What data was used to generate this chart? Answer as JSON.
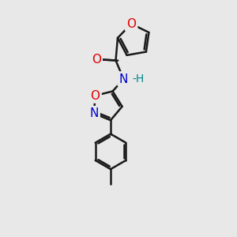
{
  "background_color": "#e8e8e8",
  "bond_color": "#1a1a1a",
  "bond_width": 1.8,
  "atom_colors": {
    "O": "#e00000",
    "N": "#0000cc",
    "H": "#008888",
    "C": "#1a1a1a"
  },
  "font_size_atoms": 11,
  "font_size_H": 10,
  "figsize": [
    3.0,
    3.0
  ],
  "dpi": 100,
  "xlim": [
    0,
    10
  ],
  "ylim": [
    0,
    12
  ]
}
